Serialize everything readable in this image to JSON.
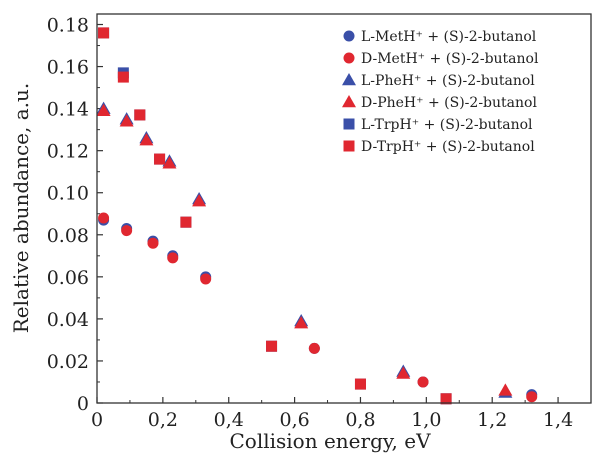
{
  "chart_data": {
    "type": "scatter",
    "xlabel": "Collision energy, eV",
    "ylabel": "Relative abundance, a.u.",
    "xlim": [
      0,
      1.5
    ],
    "ylim": [
      0,
      0.185
    ],
    "x_ticks": [
      "0",
      "0,2",
      "0,4",
      "0,6",
      "0,8",
      "1,0",
      "1,2",
      "1,4"
    ],
    "x_tick_values": [
      0,
      0.2,
      0.4,
      0.6,
      0.8,
      1.0,
      1.2,
      1.4
    ],
    "y_ticks": [
      "0",
      "0.02",
      "0.04",
      "0.06",
      "0.08",
      "0.10",
      "0.12",
      "0.14",
      "0.16",
      "0.18"
    ],
    "y_tick_values": [
      0,
      0.02,
      0.04,
      0.06,
      0.08,
      0.1,
      0.12,
      0.14,
      0.16,
      0.18
    ],
    "legend_position": "top-right",
    "series": [
      {
        "name": "L-MetH⁺ + (S)-2-butanol",
        "marker": "circle",
        "color": "#3a4fa8",
        "points": [
          [
            0.02,
            0.087
          ],
          [
            0.09,
            0.083
          ],
          [
            0.17,
            0.077
          ],
          [
            0.23,
            0.07
          ],
          [
            0.33,
            0.06
          ],
          [
            0.66,
            0.026
          ],
          [
            0.99,
            0.01
          ],
          [
            1.32,
            0.004
          ]
        ]
      },
      {
        "name": "D-MetH⁺ + (S)-2-butanol",
        "marker": "circle",
        "color": "#e02730",
        "points": [
          [
            0.02,
            0.088
          ],
          [
            0.09,
            0.082
          ],
          [
            0.17,
            0.076
          ],
          [
            0.23,
            0.069
          ],
          [
            0.33,
            0.059
          ],
          [
            0.66,
            0.026
          ],
          [
            0.99,
            0.01
          ],
          [
            1.32,
            0.003
          ]
        ]
      },
      {
        "name": "L-PheH⁺ + (S)-2-butanol",
        "marker": "triangle",
        "color": "#3a4fa8",
        "points": [
          [
            0.02,
            0.14
          ],
          [
            0.09,
            0.135
          ],
          [
            0.15,
            0.126
          ],
          [
            0.22,
            0.115
          ],
          [
            0.31,
            0.097
          ],
          [
            0.62,
            0.039
          ],
          [
            0.93,
            0.015
          ],
          [
            1.24,
            0.005
          ]
        ]
      },
      {
        "name": "D-PheH⁺ + (S)-2-butanol",
        "marker": "triangle",
        "color": "#e02730",
        "points": [
          [
            0.02,
            0.139
          ],
          [
            0.09,
            0.134
          ],
          [
            0.15,
            0.125
          ],
          [
            0.22,
            0.114
          ],
          [
            0.31,
            0.096
          ],
          [
            0.62,
            0.038
          ],
          [
            0.93,
            0.014
          ],
          [
            1.24,
            0.006
          ]
        ]
      },
      {
        "name": "L-TrpH⁺ + (S)-2-butanol",
        "marker": "square",
        "color": "#3a4fa8",
        "points": [
          [
            0.02,
            0.176
          ],
          [
            0.08,
            0.157
          ],
          [
            0.13,
            0.137
          ],
          [
            0.19,
            0.116
          ],
          [
            0.27,
            0.086
          ],
          [
            0.53,
            0.027
          ],
          [
            0.8,
            0.009
          ],
          [
            1.06,
            0.002
          ]
        ]
      },
      {
        "name": "D-TrpH⁺ + (S)-2-butanol",
        "marker": "square",
        "color": "#e02730",
        "points": [
          [
            0.02,
            0.176
          ],
          [
            0.08,
            0.155
          ],
          [
            0.13,
            0.137
          ],
          [
            0.19,
            0.116
          ],
          [
            0.27,
            0.086
          ],
          [
            0.53,
            0.027
          ],
          [
            0.8,
            0.009
          ],
          [
            1.06,
            0.002
          ]
        ]
      }
    ]
  }
}
